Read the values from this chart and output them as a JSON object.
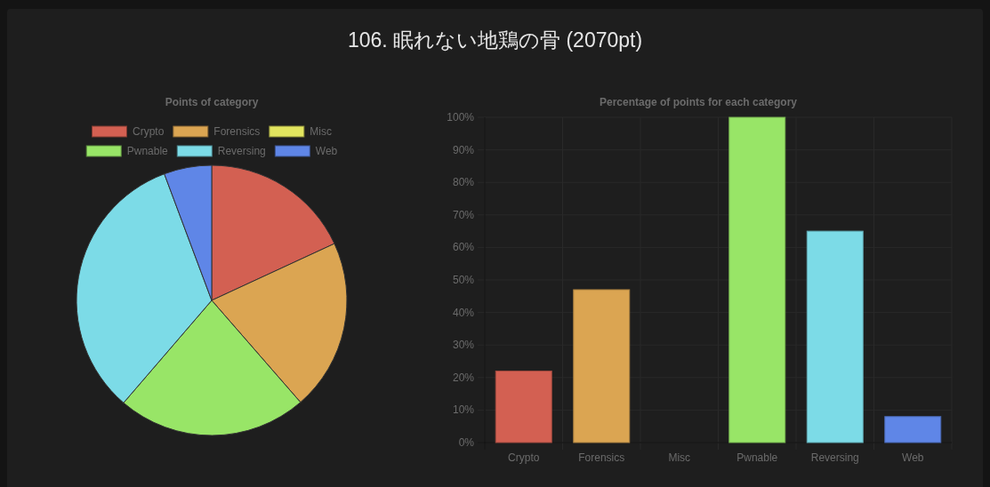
{
  "chart_data": [
    {
      "type": "other",
      "title": "106. 眠れない地鶏の骨 (2070pt)"
    },
    {
      "type": "pie",
      "title": "Points of category",
      "categories": [
        "Crypto",
        "Forensics",
        "Misc",
        "Pwnable",
        "Reversing",
        "Web"
      ],
      "values": [
        18.1,
        20.5,
        0,
        22.7,
        33.0,
        5.7
      ],
      "colors": [
        "#d36052",
        "#dba552",
        "#e2e55f",
        "#98e567",
        "#7cdbe7",
        "#5f86e7"
      ],
      "legend": "top"
    },
    {
      "type": "bar",
      "title": "Percentage of points for each category",
      "categories": [
        "Crypto",
        "Forensics",
        "Misc",
        "Pwnable",
        "Reversing",
        "Web"
      ],
      "values": [
        22,
        47,
        0,
        100,
        65,
        8
      ],
      "colors": [
        "#d36052",
        "#dba552",
        null,
        "#98e567",
        "#7cdbe7",
        "#5f86e7"
      ],
      "ylim": [
        0,
        100
      ],
      "yticks": [
        {
          "value": 0,
          "label": "0%"
        },
        {
          "value": 10,
          "label": "10%"
        },
        {
          "value": 20,
          "label": "20%"
        },
        {
          "value": 30,
          "label": "30%"
        },
        {
          "value": 40,
          "label": "40%"
        },
        {
          "value": 50,
          "label": "50%"
        },
        {
          "value": 60,
          "label": "60%"
        },
        {
          "value": 70,
          "label": "70%"
        },
        {
          "value": 80,
          "label": "80%"
        },
        {
          "value": 90,
          "label": "90%"
        },
        {
          "value": 100,
          "label": "100%"
        }
      ],
      "grid": true
    }
  ]
}
